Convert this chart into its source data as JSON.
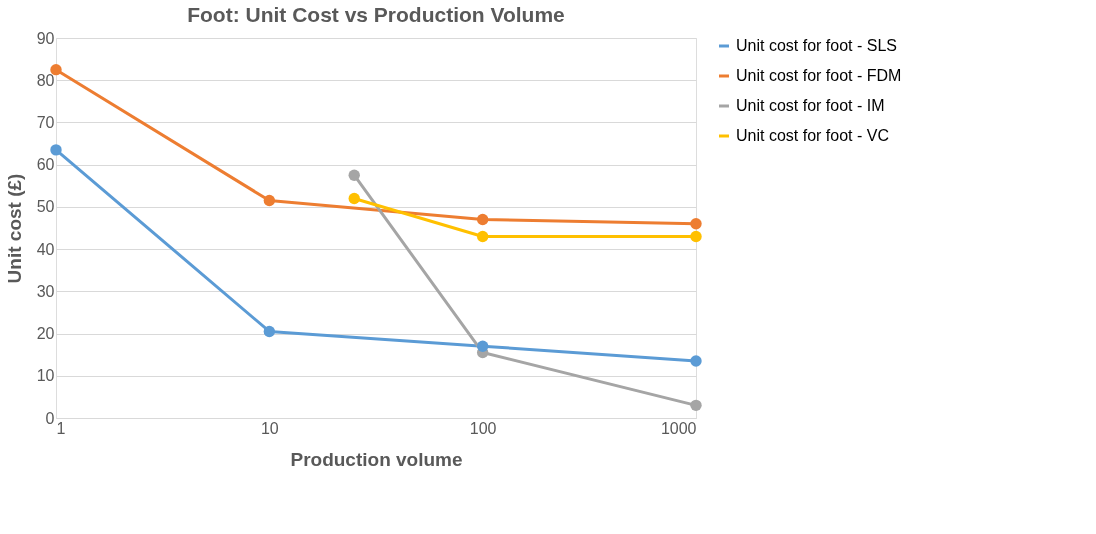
{
  "chart_data": {
    "type": "line",
    "title": "Foot: Unit Cost vs Production Volume",
    "xlabel": "Production volume",
    "ylabel": "Unit cost (£)",
    "log": "x",
    "xlim": [
      1,
      1000
    ],
    "xticks": [
      1,
      10,
      100,
      1000
    ],
    "ylim": [
      0,
      90
    ],
    "yticks": [
      0,
      10,
      20,
      30,
      40,
      50,
      60,
      70,
      80,
      90
    ],
    "grid": "y",
    "legend": "right",
    "marker": "circle",
    "line_style": "solid",
    "series": [
      {
        "name": "Unit cost for foot - SLS",
        "color": "#5b9bd5",
        "x": [
          1,
          10,
          100,
          1000
        ],
        "values": [
          63.5,
          20.5,
          17,
          13.5
        ]
      },
      {
        "name": "Unit cost for foot - FDM",
        "color": "#ed7d31",
        "x": [
          1,
          10,
          100,
          1000
        ],
        "values": [
          82.5,
          51.5,
          47,
          46
        ]
      },
      {
        "name": "Unit cost for foot - IM",
        "color": "#a5a5a5",
        "x": [
          25,
          100,
          1000
        ],
        "values": [
          57.5,
          15.5,
          3
        ]
      },
      {
        "name": "Unit cost for foot - VC",
        "color": "#ffc000",
        "x": [
          25,
          100,
          1000
        ],
        "values": [
          52,
          43,
          43
        ]
      }
    ]
  }
}
